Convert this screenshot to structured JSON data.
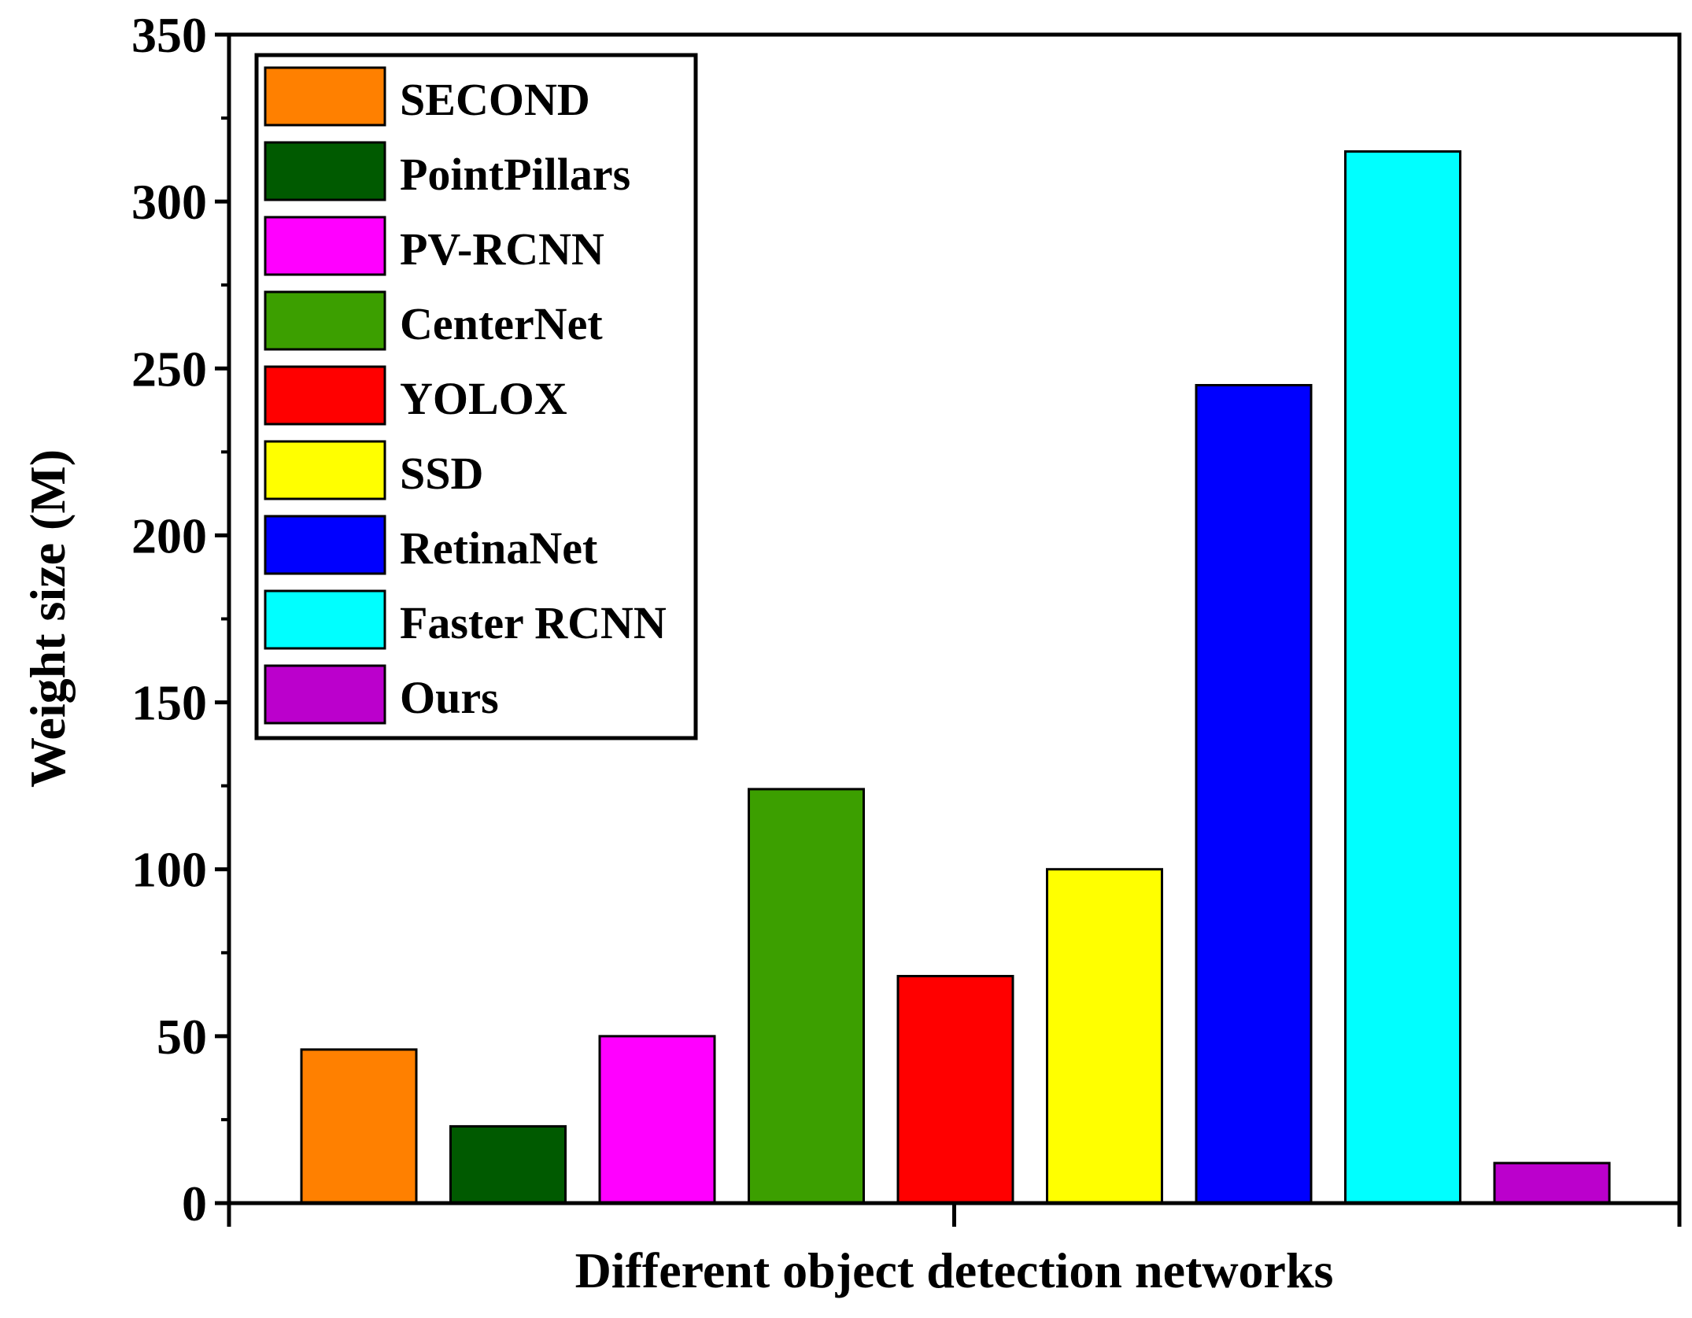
{
  "chart_data": {
    "type": "bar",
    "title": "",
    "xlabel": "Different object detection networks",
    "ylabel": "Weight size (M)",
    "ylim": [
      0,
      350
    ],
    "yticks": [
      "0",
      "50",
      "100",
      "150",
      "200",
      "250",
      "300",
      "350"
    ],
    "ytick_values": [
      0,
      50,
      100,
      150,
      200,
      250,
      300,
      350
    ],
    "grid": false,
    "legend_position": "top-left",
    "categories": [
      "SECOND",
      "PointPillars",
      "PV-RCNN",
      "CenterNet",
      "YOLOX",
      "SSD",
      "RetinaNet",
      "Faster RCNN",
      "Ours"
    ],
    "values": [
      46,
      23,
      50,
      124,
      68,
      100,
      245,
      315,
      12
    ],
    "colors": [
      "#ff8000",
      "#005a00",
      "#ff00ff",
      "#3c9f00",
      "#ff0000",
      "#ffff00",
      "#0000ff",
      "#00ffff",
      "#bb00cc"
    ]
  }
}
